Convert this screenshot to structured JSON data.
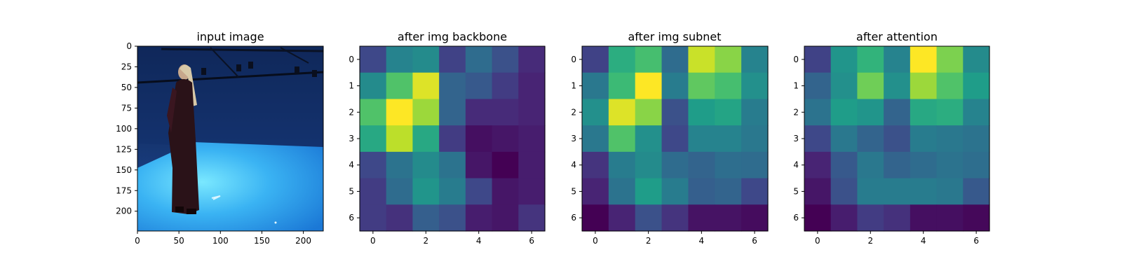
{
  "chart_data": [
    {
      "type": "image",
      "title": "input image",
      "xticks": [
        0,
        50,
        100,
        150,
        200
      ],
      "yticks": [
        0,
        25,
        50,
        75,
        100,
        125,
        150,
        175,
        200
      ],
      "xlim": [
        0,
        224
      ],
      "ylim": [
        224,
        0
      ]
    },
    {
      "type": "heatmap",
      "title": "after img backbone",
      "xticks": [
        0,
        2,
        4,
        6
      ],
      "yticks": [
        0,
        1,
        2,
        3,
        4,
        5,
        6
      ],
      "values": [
        [
          0.22,
          0.45,
          0.48,
          0.2,
          0.35,
          0.25,
          0.12
        ],
        [
          0.48,
          0.72,
          0.95,
          0.32,
          0.28,
          0.18,
          0.1
        ],
        [
          0.72,
          1.0,
          0.85,
          0.32,
          0.12,
          0.12,
          0.1
        ],
        [
          0.6,
          0.9,
          0.6,
          0.18,
          0.04,
          0.06,
          0.08
        ],
        [
          0.22,
          0.38,
          0.48,
          0.38,
          0.06,
          0.0,
          0.08
        ],
        [
          0.18,
          0.35,
          0.52,
          0.42,
          0.22,
          0.06,
          0.08
        ],
        [
          0.18,
          0.14,
          0.3,
          0.25,
          0.08,
          0.06,
          0.15
        ]
      ]
    },
    {
      "type": "heatmap",
      "title": "after img subnet",
      "xticks": [
        0,
        2,
        4,
        6
      ],
      "yticks": [
        0,
        1,
        2,
        3,
        4,
        5,
        6
      ],
      "values": [
        [
          0.2,
          0.62,
          0.7,
          0.35,
          0.92,
          0.82,
          0.45
        ],
        [
          0.4,
          0.68,
          1.0,
          0.42,
          0.75,
          0.7,
          0.5
        ],
        [
          0.5,
          0.95,
          0.82,
          0.25,
          0.55,
          0.58,
          0.42
        ],
        [
          0.4,
          0.72,
          0.5,
          0.22,
          0.45,
          0.45,
          0.4
        ],
        [
          0.15,
          0.42,
          0.48,
          0.35,
          0.32,
          0.36,
          0.35
        ],
        [
          0.1,
          0.38,
          0.55,
          0.42,
          0.3,
          0.32,
          0.22
        ],
        [
          0.0,
          0.1,
          0.25,
          0.15,
          0.05,
          0.05,
          0.03
        ]
      ]
    },
    {
      "type": "heatmap",
      "title": "after attention",
      "xticks": [
        0,
        2,
        4,
        6
      ],
      "yticks": [
        0,
        1,
        2,
        3,
        4,
        5,
        6
      ],
      "values": [
        [
          0.2,
          0.52,
          0.65,
          0.45,
          1.0,
          0.8,
          0.48
        ],
        [
          0.32,
          0.5,
          0.78,
          0.5,
          0.85,
          0.72,
          0.55
        ],
        [
          0.38,
          0.55,
          0.52,
          0.32,
          0.6,
          0.62,
          0.45
        ],
        [
          0.22,
          0.4,
          0.32,
          0.25,
          0.42,
          0.4,
          0.38
        ],
        [
          0.1,
          0.28,
          0.4,
          0.32,
          0.35,
          0.38,
          0.36
        ],
        [
          0.06,
          0.25,
          0.42,
          0.42,
          0.42,
          0.4,
          0.28
        ],
        [
          0.0,
          0.08,
          0.18,
          0.14,
          0.04,
          0.04,
          0.02
        ]
      ]
    }
  ],
  "colormap": "viridis"
}
